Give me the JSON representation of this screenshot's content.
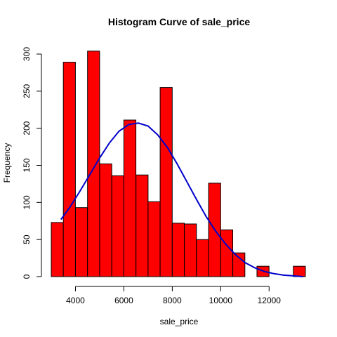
{
  "chart_data": {
    "type": "bar",
    "title": "Histogram Curve of sale_price",
    "xlabel": "sale_price",
    "ylabel": "Frequency",
    "bin_edges": [
      3000,
      3500,
      4000,
      4500,
      5000,
      5500,
      6000,
      6500,
      7000,
      7500,
      8000,
      8500,
      9000,
      9500,
      10000,
      10500,
      11000,
      11500,
      12000,
      12500,
      13000,
      13500
    ],
    "values": [
      73,
      289,
      93,
      304,
      152,
      136,
      211,
      137,
      101,
      255,
      72,
      71,
      50,
      126,
      63,
      32,
      0,
      14,
      0,
      0,
      14
    ],
    "xlim": [
      3000,
      13500
    ],
    "ylim": [
      0,
      300
    ],
    "x_ticks": [
      "4000",
      "6000",
      "8000",
      "10000",
      "12000"
    ],
    "y_ticks": [
      "0",
      "50",
      "100",
      "150",
      "200",
      "250",
      "300"
    ],
    "bar_color": "#ff0000",
    "bar_edge_color": "#000000",
    "curve": {
      "type": "normal-density",
      "color": "#0000cc",
      "x": [
        3400,
        3800,
        4200,
        4600,
        5000,
        5400,
        5800,
        6200,
        6600,
        7000,
        7400,
        7800,
        8200,
        8600,
        9000,
        9400,
        9800,
        10200,
        10600,
        11000,
        11400,
        11800,
        12200,
        12600,
        13000,
        13400
      ],
      "y": [
        77,
        95,
        116,
        138,
        160,
        180,
        196,
        205,
        207,
        203,
        191,
        174,
        152,
        128,
        104,
        81,
        61,
        44,
        30,
        19,
        12,
        7,
        4,
        2,
        1,
        0
      ]
    },
    "grid": false,
    "legend": "none"
  }
}
